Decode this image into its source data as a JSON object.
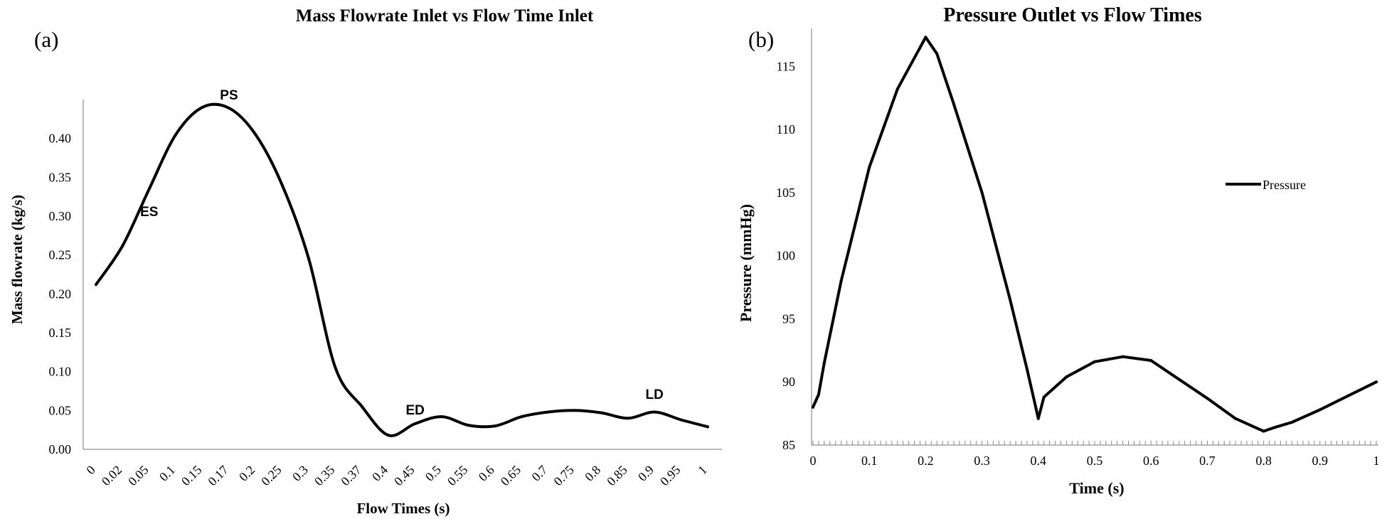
{
  "figure": {
    "colors": {
      "line": "#000000",
      "axis": "#777777",
      "background": "#ffffff"
    }
  },
  "chart_data": [
    {
      "type": "line",
      "panel_label": "(a)",
      "title": "Mass Flowrate Inlet vs Flow Time Inlet",
      "xlabel": "Flow Times (s)",
      "ylabel": "Mass flowrate (kg/s)",
      "grid": false,
      "legend": "none",
      "categories": [
        "0",
        "0.02",
        "0.05",
        "0.1",
        "0.15",
        "0.17",
        "0.2",
        "0.25",
        "0.3",
        "0.35",
        "0.37",
        "0.4",
        "0.45",
        "0.5",
        "0.55",
        "0.6",
        "0.65",
        "0.7",
        "0.75",
        "0.8",
        "0.85",
        "0.9",
        "0.95",
        "1"
      ],
      "y_ticks": [
        "0.00",
        "0.05",
        "0.10",
        "0.15",
        "0.20",
        "0.25",
        "0.30",
        "0.35",
        "0.40"
      ],
      "ylim": [
        0,
        0.45
      ],
      "series": [
        {
          "name": "Mass flowrate",
          "values": [
            0.212,
            0.262,
            0.335,
            0.405,
            0.44,
            0.439,
            0.405,
            0.34,
            0.245,
            0.105,
            0.055,
            0.018,
            0.033,
            0.042,
            0.031,
            0.03,
            0.042,
            0.048,
            0.05,
            0.047,
            0.04,
            0.048,
            0.038,
            0.029
          ]
        }
      ],
      "annotations": [
        {
          "text": "ES",
          "category": "0.05",
          "value": 0.3
        },
        {
          "text": "PS",
          "category": "0.17",
          "value": 0.45
        },
        {
          "text": "ED",
          "category": "0.45",
          "value": 0.045
        },
        {
          "text": "LD",
          "category": "0.9",
          "value": 0.065
        }
      ]
    },
    {
      "type": "line",
      "panel_label": "(b)",
      "title": "Pressure Outlet vs Flow Times",
      "xlabel": "Time (s)",
      "ylabel": "Pressure (mmHg)",
      "grid": false,
      "legend": "top-right",
      "xlim": [
        0,
        1
      ],
      "ylim": [
        85,
        118
      ],
      "x_ticks": [
        "0",
        "0.1",
        "0.2",
        "0.3",
        "0.4",
        "0.5",
        "0.6",
        "0.7",
        "0.8",
        "0.9",
        "1"
      ],
      "y_ticks": [
        "85",
        "90",
        "95",
        "100",
        "105",
        "110",
        "115"
      ],
      "series": [
        {
          "name": "Pressure",
          "x": [
            0,
            0.01,
            0.02,
            0.05,
            0.1,
            0.15,
            0.2,
            0.22,
            0.25,
            0.3,
            0.35,
            0.38,
            0.4,
            0.41,
            0.45,
            0.5,
            0.55,
            0.6,
            0.65,
            0.7,
            0.75,
            0.78,
            0.8,
            0.82,
            0.85,
            0.9,
            0.95,
            1.0
          ],
          "y": [
            88,
            89,
            91.5,
            98,
            107,
            113.2,
            117.3,
            116,
            112,
            105,
            96.5,
            91,
            87.1,
            88.8,
            90.4,
            91.6,
            92,
            91.7,
            90.2,
            88.7,
            87.1,
            86.5,
            86.1,
            86.4,
            86.8,
            87.8,
            88.9,
            90
          ]
        }
      ]
    }
  ]
}
